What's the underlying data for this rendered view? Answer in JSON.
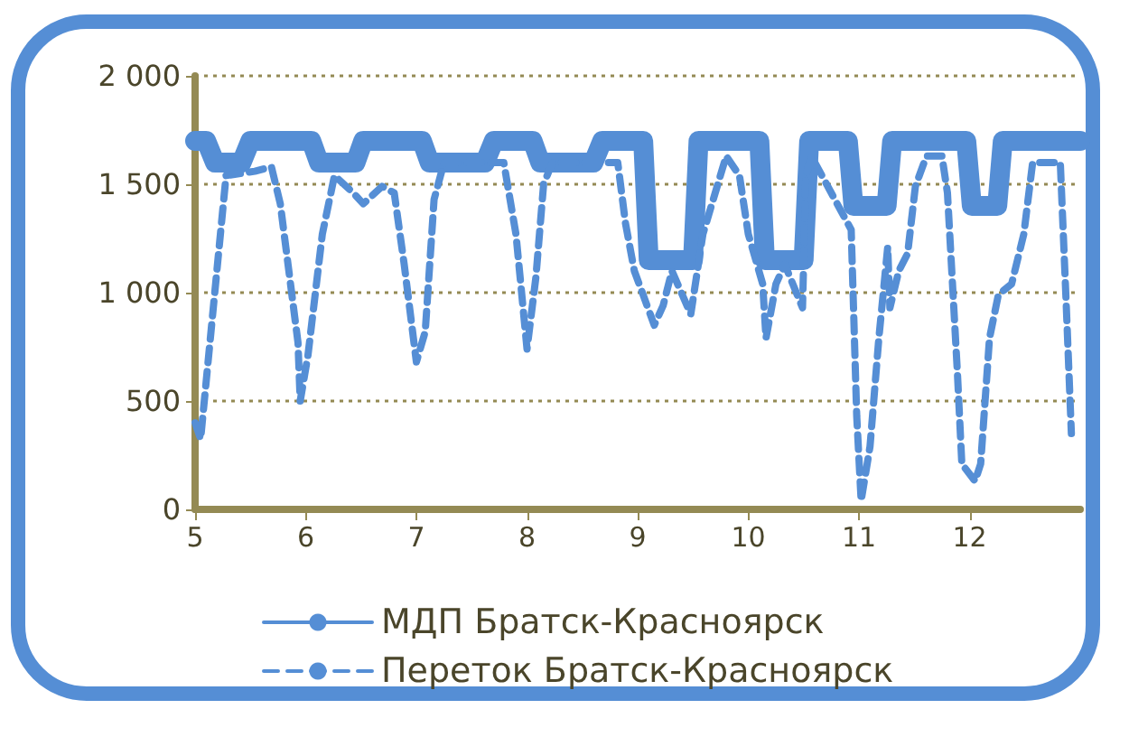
{
  "chart_data": {
    "type": "line",
    "xlim": [
      5,
      13
    ],
    "xticks": [
      5,
      6,
      7,
      8,
      9,
      10,
      11,
      12
    ],
    "ylim": [
      0,
      2000
    ],
    "yticks": [
      0,
      500,
      {
        "value": 1000,
        "label": "1 000"
      },
      {
        "value": 1500,
        "label": "1 500"
      },
      {
        "value": 2000,
        "label": "2 000"
      }
    ],
    "grid": "y",
    "legend": "bottom",
    "marker": "none",
    "series": [
      {
        "name": "МДП Братск-Красноярск",
        "color": "#558ed5",
        "line_style": "solid",
        "x": [
          5,
          5.1,
          5.18,
          5.42,
          5.5,
          6.05,
          6.12,
          6.45,
          6.52,
          7.05,
          7.12,
          7.62,
          7.7,
          8.05,
          8.12,
          8.6,
          8.68,
          9.05,
          9.1,
          9.5,
          9.55,
          10.1,
          10.15,
          10.5,
          10.55,
          10.9,
          10.95,
          11.25,
          11.3,
          11.97,
          12.02,
          12.25,
          12.3,
          13
        ],
        "values": [
          1700,
          1700,
          1600,
          1600,
          1700,
          1700,
          1600,
          1600,
          1700,
          1700,
          1600,
          1600,
          1700,
          1700,
          1600,
          1600,
          1700,
          1700,
          1150,
          1150,
          1700,
          1700,
          1150,
          1150,
          1700,
          1700,
          1400,
          1400,
          1700,
          1700,
          1400,
          1400,
          1700,
          1700
        ]
      },
      {
        "name": "Переток Братск-Красноярск",
        "color": "#558ed5",
        "line_style": "dashed",
        "x": [
          5,
          5.05,
          5.28,
          5.54,
          5.69,
          5.77,
          5.93,
          5.95,
          6.02,
          6.15,
          6.26,
          6.43,
          6.52,
          6.69,
          6.8,
          6.89,
          7,
          7.08,
          7.16,
          7.25,
          7.79,
          7.9,
          8,
          8.08,
          8.15,
          8.23,
          8.82,
          8.89,
          8.97,
          9.15,
          9.23,
          9.31,
          9.48,
          9.59,
          9.8,
          9.92,
          10,
          10.13,
          10.16,
          10.25,
          10.33,
          10.49,
          10.52,
          10.57,
          10.93,
          10.98,
          11.02,
          11.1,
          11.18,
          11.26,
          11.28,
          11.36,
          11.44,
          11.51,
          11.61,
          11.75,
          11.8,
          11.89,
          11.93,
          12.05,
          12.1,
          12.18,
          12.26,
          12.38,
          12.49,
          12.57,
          12.82,
          12.87,
          12.92
        ],
        "values": [
          400,
          325,
          1540,
          1560,
          1580,
          1410,
          770,
          500,
          710,
          1270,
          1540,
          1460,
          1410,
          1490,
          1460,
          1130,
          680,
          820,
          1430,
          1600,
          1600,
          1270,
          740,
          1070,
          1500,
          1600,
          1600,
          1320,
          1100,
          850,
          940,
          1100,
          900,
          1270,
          1630,
          1540,
          1270,
          1040,
          790,
          1040,
          1130,
          930,
          1540,
          1630,
          1290,
          430,
          40,
          290,
          790,
          1210,
          930,
          1100,
          1180,
          1490,
          1630,
          1630,
          1460,
          630,
          210,
          130,
          210,
          790,
          990,
          1040,
          1270,
          1600,
          1600,
          990,
          350
        ]
      }
    ]
  }
}
